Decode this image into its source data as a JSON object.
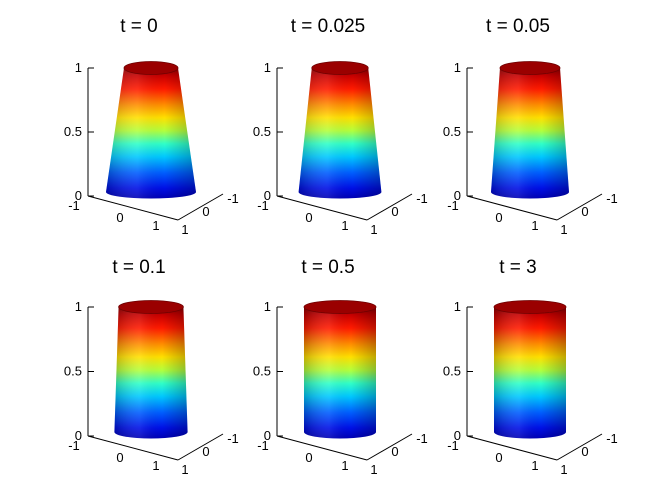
{
  "chart_data": [
    {
      "type": "surface",
      "title": "t = 0",
      "top_radius": 0.45,
      "bottom_radius": 0.75,
      "z_range": [
        0,
        1
      ],
      "xlim": [
        -1,
        1
      ],
      "ylim": [
        -1,
        1
      ],
      "zlim": [
        0,
        1
      ],
      "x_ticks": [
        "-1",
        "0",
        "1"
      ],
      "y_ticks": [
        "1",
        "0",
        "-1"
      ],
      "z_ticks": [
        "0",
        "0.5",
        "1"
      ],
      "colormap": "jet",
      "grid": false
    },
    {
      "type": "surface",
      "title": "t = 0.025",
      "top_radius": 0.47,
      "bottom_radius": 0.69,
      "z_range": [
        0,
        1
      ],
      "xlim": [
        -1,
        1
      ],
      "ylim": [
        -1,
        1
      ],
      "zlim": [
        0,
        1
      ],
      "x_ticks": [
        "-1",
        "0",
        "1"
      ],
      "y_ticks": [
        "1",
        "0",
        "-1"
      ],
      "z_ticks": [
        "0",
        "0.5",
        "1"
      ],
      "colormap": "jet",
      "grid": false
    },
    {
      "type": "surface",
      "title": "t = 0.05",
      "top_radius": 0.5,
      "bottom_radius": 0.65,
      "z_range": [
        0,
        1
      ],
      "xlim": [
        -1,
        1
      ],
      "ylim": [
        -1,
        1
      ],
      "zlim": [
        0,
        1
      ],
      "x_ticks": [
        "-1",
        "0",
        "1"
      ],
      "y_ticks": [
        "1",
        "0",
        "-1"
      ],
      "z_ticks": [
        "0",
        "0.5",
        "1"
      ],
      "colormap": "jet",
      "grid": false
    },
    {
      "type": "surface",
      "title": "t = 0.1",
      "top_radius": 0.54,
      "bottom_radius": 0.61,
      "z_range": [
        0,
        1
      ],
      "xlim": [
        -1,
        1
      ],
      "ylim": [
        -1,
        1
      ],
      "zlim": [
        0,
        1
      ],
      "x_ticks": [
        "-1",
        "0",
        "1"
      ],
      "y_ticks": [
        "1",
        "0",
        "-1"
      ],
      "z_ticks": [
        "0",
        "0.5",
        "1"
      ],
      "colormap": "jet",
      "grid": false
    },
    {
      "type": "surface",
      "title": "t = 0.5",
      "top_radius": 0.6,
      "bottom_radius": 0.6,
      "z_range": [
        0,
        1
      ],
      "xlim": [
        -1,
        1
      ],
      "ylim": [
        -1,
        1
      ],
      "zlim": [
        0,
        1
      ],
      "x_ticks": [
        "-1",
        "0",
        "1"
      ],
      "y_ticks": [
        "1",
        "0",
        "-1"
      ],
      "z_ticks": [
        "0",
        "0.5",
        "1"
      ],
      "colormap": "jet",
      "grid": false
    },
    {
      "type": "surface",
      "title": "t = 3",
      "top_radius": 0.6,
      "bottom_radius": 0.6,
      "z_range": [
        0,
        1
      ],
      "xlim": [
        -1,
        1
      ],
      "ylim": [
        -1,
        1
      ],
      "zlim": [
        0,
        1
      ],
      "x_ticks": [
        "-1",
        "0",
        "1"
      ],
      "y_ticks": [
        "1",
        "0",
        "-1"
      ],
      "z_ticks": [
        "0",
        "0.5",
        "1"
      ],
      "colormap": "jet",
      "grid": false
    }
  ]
}
